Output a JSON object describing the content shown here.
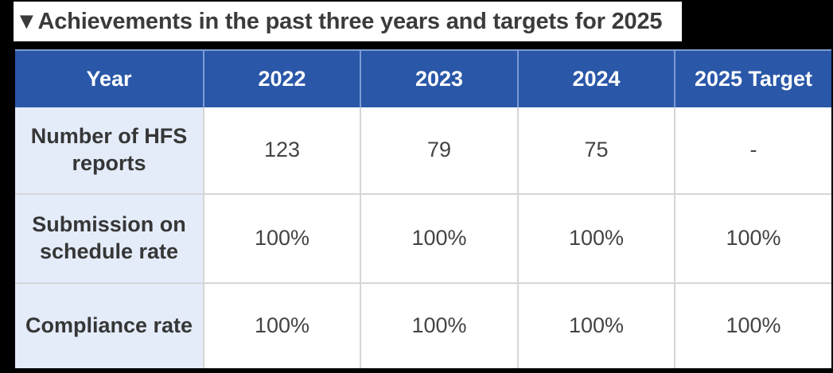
{
  "title": "▼Achievements in the past three years and targets for 2025",
  "table": {
    "header": [
      "Year",
      "2022",
      "2023",
      "2024",
      "2025 Target"
    ],
    "rows": [
      {
        "label": "Number of HFS reports",
        "values": [
          "123",
          "79",
          "75",
          "-"
        ]
      },
      {
        "label": "Submission on schedule rate",
        "values": [
          "100%",
          "100%",
          "100%",
          "100%"
        ]
      },
      {
        "label": "Compliance rate",
        "values": [
          "100%",
          "100%",
          "100%",
          "100%"
        ]
      }
    ]
  },
  "chart_data": {
    "type": "table",
    "title": "Achievements in the past three years and targets for 2025",
    "columns": [
      "Year",
      "2022",
      "2023",
      "2024",
      "2025 Target"
    ],
    "rows": [
      [
        "Number of HFS reports",
        "123",
        "79",
        "75",
        "-"
      ],
      [
        "Submission on schedule rate",
        "100%",
        "100%",
        "100%",
        "100%"
      ],
      [
        "Compliance rate",
        "100%",
        "100%",
        "100%",
        "100%"
      ]
    ]
  },
  "colors": {
    "page_background": "#000000",
    "title_strip_background": "#ffffff",
    "title_text": "#3b3b3b",
    "header_background": "#2a57a8",
    "header_text": "#ffffff",
    "header_separator": "#7e9cd4",
    "label_column_background": "#e4ecfa",
    "label_text": "#363636",
    "value_text": "#444444",
    "grid_line": "#d6d6d6"
  }
}
